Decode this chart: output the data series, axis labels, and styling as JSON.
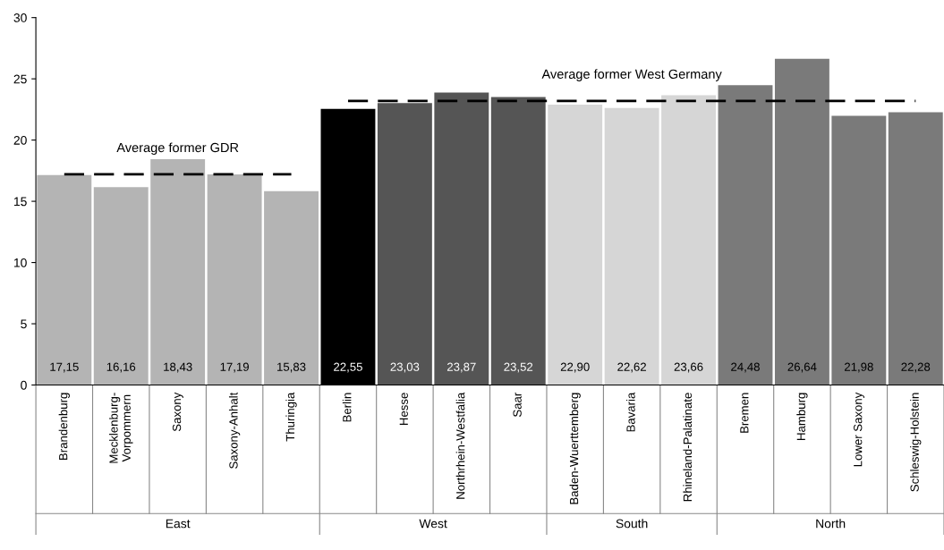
{
  "chart_data": {
    "type": "bar",
    "categories": [
      "Brandenburg",
      "Mecklenburg-\nVorpommern",
      "Saxony",
      "Saxony-Anhalt",
      "Thuringia",
      "Berlin",
      "Hesse",
      "Northrhein-Westfalia",
      "Saar",
      "Baden-Wuerttemberg",
      "Bavaria",
      "Rhineland-Palatinate",
      "Bremen",
      "Hamburg",
      "Lower Saxony",
      "Schleswig-Holstein"
    ],
    "series": [
      {
        "values": [
          17.15,
          16.16,
          18.43,
          17.19,
          15.83,
          22.55,
          23.03,
          23.87,
          23.52,
          22.9,
          22.62,
          23.66,
          24.48,
          26.64,
          21.98,
          22.28
        ],
        "colors": [
          "#b4b4b4",
          "#b4b4b4",
          "#b4b4b4",
          "#b4b4b4",
          "#b4b4b4",
          "#000000",
          "#555555",
          "#555555",
          "#555555",
          "#d6d6d6",
          "#d6d6d6",
          "#d6d6d6",
          "#7a7a7a",
          "#7a7a7a",
          "#7a7a7a",
          "#7a7a7a"
        ],
        "value_labels": [
          "17,15",
          "16,16",
          "18,43",
          "17,19",
          "15,83",
          "22,55",
          "23,03",
          "23,87",
          "23,52",
          "22,90",
          "22,62",
          "23,66",
          "24,48",
          "26,64",
          "21,98",
          "22,28"
        ]
      },
      {
        "type": "line",
        "name": "Average former GDR",
        "color": "#000000",
        "line_style": "dashed",
        "values": [
          17.2,
          null,
          null,
          null,
          17.2,
          null,
          null,
          null,
          null,
          null,
          null,
          null,
          null,
          null,
          null,
          null
        ]
      },
      {
        "type": "line",
        "name": "Average former West Germany",
        "color": "#000000",
        "line_style": "dashed",
        "values": [
          null,
          null,
          null,
          null,
          null,
          23.2,
          null,
          null,
          null,
          null,
          null,
          null,
          null,
          null,
          null,
          23.2
        ]
      }
    ],
    "annotations": [
      "East",
      "West",
      "South",
      "North"
    ],
    "ylim": [
      0,
      30
    ],
    "yticks": [
      0,
      5,
      10,
      15,
      20,
      25,
      30
    ],
    "grid": false,
    "legend": false
  }
}
